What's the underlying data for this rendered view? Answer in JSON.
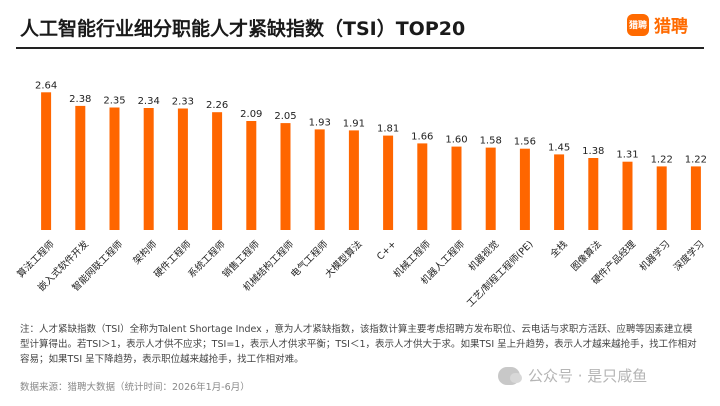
{
  "header": {
    "title": "人工智能行业细分职能人才紧缺指数（TSI）TOP20",
    "logo_badge": "猎聘",
    "logo_text": "猎聘"
  },
  "colors": {
    "bar": "#ff6600",
    "brand": "#ff6a00",
    "text": "#222222"
  },
  "chart_data": {
    "type": "bar",
    "title": "人工智能行业细分职能人才紧缺指数（TSI）TOP20",
    "categories": [
      "算法工程师",
      "嵌入式软件开发",
      "智能网联工程师",
      "架构师",
      "硬件工程师",
      "系统工程师",
      "销售工程师",
      "机械结构工程师",
      "电气工程师",
      "大模型算法",
      "C++",
      "机械工程师",
      "机器人工程师",
      "机器视觉",
      "工艺/制程工程师(PE)",
      "全栈",
      "图像算法",
      "硬件产品经理",
      "机器学习",
      "深度学习"
    ],
    "values": [
      2.64,
      2.38,
      2.35,
      2.34,
      2.33,
      2.26,
      2.09,
      2.05,
      1.93,
      1.91,
      1.81,
      1.66,
      1.6,
      1.58,
      1.56,
      1.45,
      1.38,
      1.31,
      1.22,
      1.22
    ],
    "value_labels": [
      "2.64",
      "2.38",
      "2.35",
      "2.34",
      "2.33",
      "2.26",
      "2.09",
      "2.05",
      "1.93",
      "1.91",
      "1.81",
      "1.66",
      "1.60",
      "1.58",
      "1.56",
      "1.45",
      "1.38",
      "1.31",
      "1.22",
      "1.22"
    ],
    "ylim": [
      0,
      2.8
    ],
    "grid": false,
    "xlabel": "",
    "ylabel": ""
  },
  "footer": {
    "note": "注：人才紧缺指数（TSI）全称为Talent Shortage Index ，意为人才紧缺指数，该指数计算主要考虑招聘方发布职位、云电话与求职方活跃、应聘等因素建立模型计算得出。若TSI＞1，表示人才供不应求；TSI=1，表示人才供求平衡；TSI＜1，表示人才供大于求。如果TSI 呈上升趋势，表示人才越来越抢手，找工作相对容易；如果TSI 呈下降趋势，表示职位越来越抢手，找工作相对难。",
    "source": "数据来源：猎聘大数据（统计时间：2026年1月-6月）",
    "watermark": "公众号 · 是只咸鱼"
  }
}
